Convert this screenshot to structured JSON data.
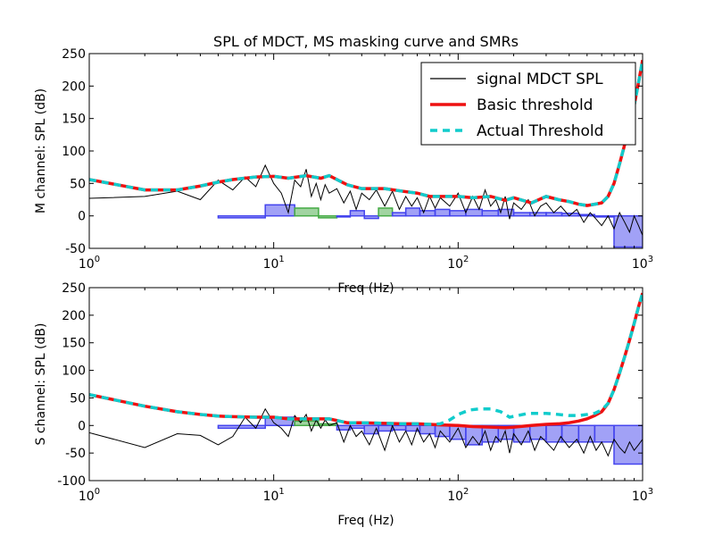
{
  "figure": {
    "title": "SPL of MDCT, MS masking curve and SMRs"
  },
  "chart_data": [
    {
      "type": "line",
      "panel": "M",
      "title": "SPL of MDCT, MS masking curve and SMRs",
      "xlabel": "Freq (Hz)",
      "ylabel": "M channel: SPL (dB)",
      "xscale": "log",
      "xlim": [
        1,
        1000
      ],
      "ylim": [
        -50,
        250
      ],
      "yticks": [
        -50,
        0,
        50,
        100,
        150,
        200,
        250
      ],
      "xticks": [
        {
          "base": "10",
          "exp": "0"
        },
        {
          "base": "10",
          "exp": "1"
        },
        {
          "base": "10",
          "exp": "2"
        },
        {
          "base": "10",
          "exp": "3"
        }
      ],
      "grid": false,
      "legend": {
        "placement": "top-right",
        "entries": [
          "signal MDCT SPL",
          "Basic threshold",
          "Actual Threshold"
        ]
      },
      "series": [
        {
          "name": "signal MDCT SPL",
          "color": "#000000",
          "x": [
            1,
            2,
            3,
            4,
            5,
            6,
            7,
            8,
            9,
            10,
            11,
            12,
            13,
            14,
            15,
            16,
            17,
            18,
            19,
            20,
            22,
            24,
            26,
            28,
            30,
            33,
            36,
            40,
            44,
            48,
            52,
            56,
            60,
            65,
            70,
            75,
            80,
            90,
            100,
            110,
            120,
            130,
            140,
            150,
            160,
            170,
            180,
            190,
            200,
            220,
            240,
            260,
            280,
            300,
            330,
            360,
            400,
            440,
            480,
            520,
            560,
            600,
            650,
            700,
            750,
            800,
            850,
            900,
            950,
            1000
          ],
          "y": [
            27,
            30,
            38,
            25,
            55,
            40,
            60,
            45,
            78,
            50,
            35,
            5,
            55,
            45,
            72,
            30,
            50,
            25,
            48,
            35,
            42,
            20,
            38,
            10,
            35,
            25,
            40,
            15,
            38,
            10,
            30,
            15,
            28,
            5,
            30,
            12,
            28,
            15,
            35,
            5,
            30,
            10,
            40,
            15,
            25,
            5,
            30,
            -5,
            20,
            10,
            25,
            0,
            15,
            20,
            5,
            15,
            0,
            10,
            -10,
            5,
            -5,
            -15,
            0,
            -20,
            5,
            -10,
            -25,
            0,
            -15,
            -30
          ]
        },
        {
          "name": "Basic threshold",
          "color": "#ee1111",
          "x": [
            1,
            2,
            3,
            4,
            5,
            6,
            8,
            10,
            12,
            15,
            18,
            20,
            25,
            30,
            35,
            40,
            50,
            60,
            70,
            80,
            100,
            120,
            150,
            180,
            200,
            250,
            300,
            350,
            400,
            450,
            500,
            550,
            600,
            650,
            700,
            750,
            800,
            850,
            900,
            950,
            1000
          ],
          "y": [
            56,
            40,
            40,
            46,
            52,
            56,
            60,
            61,
            58,
            62,
            58,
            62,
            48,
            42,
            42,
            42,
            38,
            35,
            30,
            30,
            30,
            28,
            30,
            24,
            28,
            20,
            30,
            25,
            22,
            18,
            16,
            18,
            20,
            30,
            50,
            80,
            110,
            140,
            170,
            205,
            240
          ]
        },
        {
          "name": "Actual Threshold",
          "color": "#11cccc",
          "x": [
            1,
            2,
            3,
            4,
            5,
            6,
            8,
            10,
            12,
            15,
            18,
            20,
            25,
            30,
            35,
            40,
            50,
            60,
            70,
            80,
            100,
            120,
            150,
            180,
            200,
            250,
            300,
            350,
            400,
            450,
            500,
            550,
            600,
            650,
            700,
            750,
            800,
            850,
            900,
            950,
            1000
          ],
          "y": [
            56,
            40,
            40,
            46,
            52,
            56,
            60,
            61,
            58,
            62,
            58,
            62,
            48,
            42,
            42,
            42,
            38,
            35,
            30,
            30,
            30,
            28,
            30,
            24,
            28,
            20,
            30,
            25,
            22,
            18,
            16,
            18,
            20,
            30,
            50,
            80,
            110,
            140,
            170,
            205,
            240
          ]
        }
      ],
      "smr_bars": {
        "series": "SMR",
        "blue": "#4444ee",
        "green": "#44aa44",
        "bands": [
          {
            "x0": 5,
            "x1": 9,
            "value": -3,
            "color": "blue"
          },
          {
            "x0": 9,
            "x1": 13,
            "value": 17,
            "color": "blue"
          },
          {
            "x0": 13,
            "x1": 17.5,
            "value": 12,
            "color": "green"
          },
          {
            "x0": 17.5,
            "x1": 22,
            "value": -3,
            "color": "green"
          },
          {
            "x0": 22,
            "x1": 26,
            "value": 0,
            "color": "blue"
          },
          {
            "x0": 26,
            "x1": 31,
            "value": 8,
            "color": "blue"
          },
          {
            "x0": 31,
            "x1": 37,
            "value": -4,
            "color": "blue"
          },
          {
            "x0": 37,
            "x1": 44,
            "value": 12,
            "color": "green"
          },
          {
            "x0": 44,
            "x1": 52,
            "value": 5,
            "color": "blue"
          },
          {
            "x0": 52,
            "x1": 62,
            "value": 12,
            "color": "blue"
          },
          {
            "x0": 62,
            "x1": 75,
            "value": 8,
            "color": "blue"
          },
          {
            "x0": 75,
            "x1": 90,
            "value": 10,
            "color": "blue"
          },
          {
            "x0": 90,
            "x1": 110,
            "value": 8,
            "color": "blue"
          },
          {
            "x0": 110,
            "x1": 135,
            "value": 10,
            "color": "blue"
          },
          {
            "x0": 135,
            "x1": 165,
            "value": 8,
            "color": "blue"
          },
          {
            "x0": 165,
            "x1": 200,
            "value": 10,
            "color": "blue"
          },
          {
            "x0": 200,
            "x1": 245,
            "value": 5,
            "color": "blue"
          },
          {
            "x0": 245,
            "x1": 300,
            "value": 5,
            "color": "blue"
          },
          {
            "x0": 300,
            "x1": 365,
            "value": 5,
            "color": "blue"
          },
          {
            "x0": 365,
            "x1": 450,
            "value": 4,
            "color": "blue"
          },
          {
            "x0": 450,
            "x1": 550,
            "value": 2,
            "color": "blue"
          },
          {
            "x0": 550,
            "x1": 700,
            "value": 0,
            "color": "blue"
          },
          {
            "x0": 700,
            "x1": 1000,
            "value": -48,
            "color": "blue"
          }
        ]
      }
    },
    {
      "type": "line",
      "panel": "S",
      "title": "",
      "xlabel": "Freq (Hz)",
      "ylabel": "S channel: SPL (dB)",
      "xscale": "log",
      "xlim": [
        1,
        1000
      ],
      "ylim": [
        -100,
        250
      ],
      "yticks": [
        -100,
        -50,
        0,
        50,
        100,
        150,
        200,
        250
      ],
      "xticks": [
        {
          "base": "10",
          "exp": "0"
        },
        {
          "base": "10",
          "exp": "1"
        },
        {
          "base": "10",
          "exp": "2"
        },
        {
          "base": "10",
          "exp": "3"
        }
      ],
      "grid": false,
      "series": [
        {
          "name": "signal MDCT SPL",
          "color": "#000000",
          "x": [
            1,
            2,
            3,
            4,
            5,
            6,
            7,
            8,
            9,
            10,
            11,
            12,
            13,
            14,
            15,
            16,
            17,
            18,
            19,
            20,
            22,
            24,
            26,
            28,
            30,
            33,
            36,
            40,
            44,
            48,
            52,
            56,
            60,
            65,
            70,
            75,
            80,
            90,
            100,
            110,
            120,
            130,
            140,
            150,
            160,
            170,
            180,
            190,
            200,
            220,
            240,
            260,
            280,
            300,
            330,
            360,
            400,
            440,
            480,
            520,
            560,
            600,
            650,
            700,
            750,
            800,
            850,
            900,
            950,
            1000
          ],
          "y": [
            -13,
            -40,
            -15,
            -18,
            -35,
            -20,
            15,
            -5,
            30,
            5,
            -5,
            -20,
            18,
            5,
            20,
            -10,
            10,
            -5,
            10,
            0,
            5,
            -30,
            0,
            -20,
            -10,
            -35,
            -5,
            -45,
            0,
            -30,
            -10,
            -35,
            -5,
            -30,
            -15,
            -40,
            -10,
            -30,
            -5,
            -40,
            -20,
            -35,
            -10,
            -45,
            -20,
            -30,
            -10,
            -50,
            -15,
            -35,
            -10,
            -45,
            -20,
            -30,
            -45,
            -20,
            -40,
            -25,
            -50,
            -20,
            -45,
            -30,
            -55,
            -25,
            -40,
            -50,
            -30,
            -45,
            -35,
            -25
          ]
        },
        {
          "name": "Basic threshold",
          "color": "#ee1111",
          "x": [
            1,
            2,
            3,
            4,
            5,
            6,
            8,
            10,
            12,
            15,
            18,
            20,
            25,
            30,
            40,
            50,
            60,
            70,
            80,
            100,
            120,
            150,
            180,
            200,
            250,
            300,
            350,
            400,
            450,
            500,
            550,
            600,
            650,
            700,
            750,
            800,
            850,
            900,
            950,
            1000
          ],
          "y": [
            56,
            35,
            25,
            20,
            17,
            16,
            15,
            15,
            12,
            12,
            12,
            12,
            5,
            5,
            4,
            3,
            3,
            2,
            1,
            0,
            -2,
            -3,
            -4,
            -3,
            0,
            2,
            3,
            5,
            8,
            12,
            18,
            25,
            40,
            65,
            95,
            125,
            155,
            185,
            215,
            240
          ]
        },
        {
          "name": "Actual Threshold",
          "color": "#11cccc",
          "x": [
            1,
            2,
            3,
            4,
            5,
            6,
            8,
            10,
            12,
            15,
            18,
            20,
            25,
            30,
            40,
            50,
            60,
            70,
            80,
            90,
            100,
            115,
            130,
            150,
            170,
            190,
            210,
            240,
            270,
            300,
            350,
            400,
            450,
            500,
            550,
            600,
            650,
            700,
            750,
            800,
            850,
            900,
            950,
            1000
          ],
          "y": [
            56,
            35,
            25,
            20,
            17,
            16,
            15,
            15,
            12,
            12,
            12,
            12,
            5,
            5,
            4,
            3,
            3,
            2,
            3,
            10,
            20,
            28,
            30,
            30,
            25,
            15,
            18,
            22,
            22,
            22,
            20,
            18,
            18,
            20,
            22,
            28,
            40,
            65,
            95,
            125,
            155,
            185,
            215,
            240
          ]
        }
      ],
      "smr_bars": {
        "series": "SMR",
        "blue": "#4444ee",
        "green": "#44aa44",
        "bands": [
          {
            "x0": 5,
            "x1": 9,
            "value": -5,
            "color": "blue"
          },
          {
            "x0": 9,
            "x1": 13,
            "value": 15,
            "color": "blue"
          },
          {
            "x0": 13,
            "x1": 17.5,
            "value": 8,
            "color": "green"
          },
          {
            "x0": 17.5,
            "x1": 22,
            "value": 3,
            "color": "green"
          },
          {
            "x0": 22,
            "x1": 26,
            "value": -8,
            "color": "blue"
          },
          {
            "x0": 26,
            "x1": 31,
            "value": -5,
            "color": "blue"
          },
          {
            "x0": 31,
            "x1": 37,
            "value": -15,
            "color": "blue"
          },
          {
            "x0": 37,
            "x1": 44,
            "value": -10,
            "color": "blue"
          },
          {
            "x0": 44,
            "x1": 52,
            "value": -8,
            "color": "blue"
          },
          {
            "x0": 52,
            "x1": 62,
            "value": -10,
            "color": "blue"
          },
          {
            "x0": 62,
            "x1": 75,
            "value": -15,
            "color": "blue"
          },
          {
            "x0": 75,
            "x1": 90,
            "value": -20,
            "color": "blue"
          },
          {
            "x0": 90,
            "x1": 110,
            "value": -25,
            "color": "blue"
          },
          {
            "x0": 110,
            "x1": 135,
            "value": -35,
            "color": "blue"
          },
          {
            "x0": 135,
            "x1": 165,
            "value": -30,
            "color": "blue"
          },
          {
            "x0": 165,
            "x1": 200,
            "value": -25,
            "color": "blue"
          },
          {
            "x0": 200,
            "x1": 245,
            "value": -30,
            "color": "blue"
          },
          {
            "x0": 245,
            "x1": 300,
            "value": -25,
            "color": "blue"
          },
          {
            "x0": 300,
            "x1": 365,
            "value": -30,
            "color": "blue"
          },
          {
            "x0": 365,
            "x1": 450,
            "value": -30,
            "color": "blue"
          },
          {
            "x0": 450,
            "x1": 550,
            "value": -30,
            "color": "blue"
          },
          {
            "x0": 550,
            "x1": 700,
            "value": -30,
            "color": "blue"
          },
          {
            "x0": 700,
            "x1": 1000,
            "value": -70,
            "color": "blue"
          }
        ]
      }
    }
  ]
}
